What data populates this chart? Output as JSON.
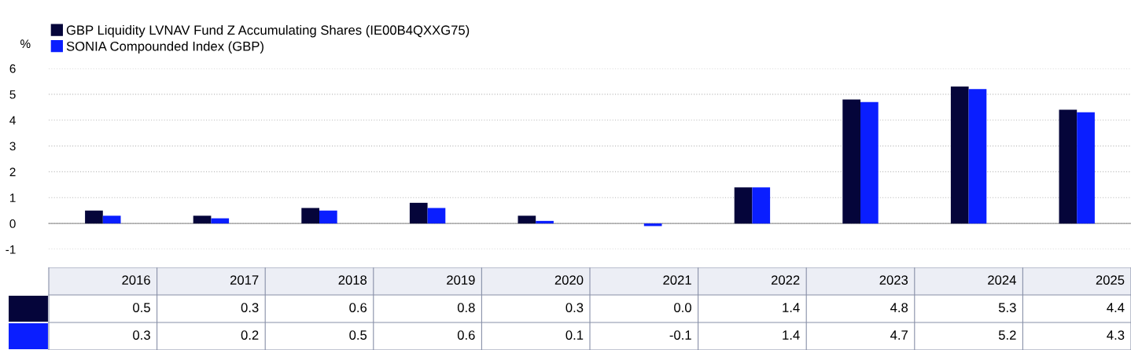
{
  "chart_data": {
    "type": "bar",
    "ylabel": "%",
    "categories": [
      "2016",
      "2017",
      "2018",
      "2019",
      "2020",
      "2021",
      "2022",
      "2023",
      "2024",
      "2025"
    ],
    "series": [
      {
        "name": "GBP Liquidity LVNAV Fund Z Accumulating Shares (IE00B4QXXG75)",
        "color": "#05053a",
        "values": [
          0.5,
          0.3,
          0.6,
          0.8,
          0.3,
          0.0,
          1.4,
          4.8,
          5.3,
          4.4
        ],
        "value_labels": [
          "0.5",
          "0.3",
          "0.6",
          "0.8",
          "0.3",
          "0.0",
          "1.4",
          "4.8",
          "5.3",
          "4.4"
        ]
      },
      {
        "name": "SONIA Compounded Index (GBP)",
        "color": "#0a1eff",
        "values": [
          0.3,
          0.2,
          0.5,
          0.6,
          0.1,
          -0.1,
          1.4,
          4.7,
          5.2,
          4.3
        ],
        "value_labels": [
          "0.3",
          "0.2",
          "0.5",
          "0.6",
          "0.1",
          "-0.1",
          "1.4",
          "4.7",
          "5.2",
          "4.3"
        ]
      }
    ],
    "ylim": [
      -1,
      6
    ],
    "yticks": [
      -1,
      0,
      1,
      2,
      3,
      4,
      5,
      6
    ],
    "grid": "y",
    "legend": "top left",
    "tick_labels": "y"
  }
}
